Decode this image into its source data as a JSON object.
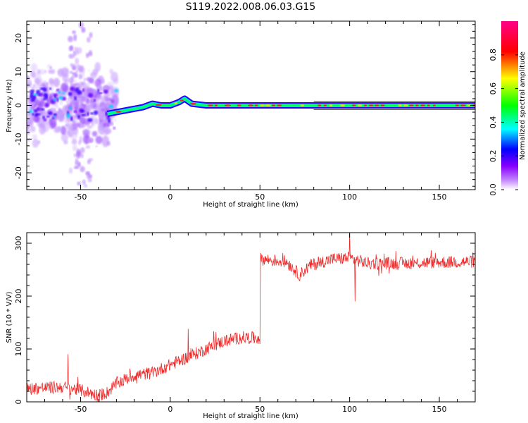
{
  "figure_title": "S119.2022.008.06.03.G15",
  "colors": {
    "snr_line": "#ef2b2b",
    "spectrum_background": "#ffffff",
    "axis": "#000000"
  },
  "chart_data": [
    {
      "type": "heatmap",
      "name": "spectrogram",
      "xlabel": "Height of straight line (km)",
      "ylabel": "Frequency (Hz)",
      "xlim": [
        -80,
        170
      ],
      "ylim": [
        -25,
        25
      ],
      "x_ticks": [
        -50,
        0,
        50,
        100,
        150
      ],
      "y_ticks": [
        -20,
        -10,
        0,
        10,
        20
      ],
      "grid": false,
      "colorbar": {
        "label": "Normalized spectral amplitude",
        "range": [
          0.0,
          1.0
        ],
        "ticks": [
          0.0,
          0.2,
          0.4,
          0.6,
          0.8
        ],
        "colormap": [
          "#ffffff",
          "#8800ff",
          "#0000ff",
          "#00ffff",
          "#00ff00",
          "#ffff00",
          "#ff0000",
          "#ff0088"
        ]
      },
      "ridge_frequency_hz": [
        {
          "x": -35,
          "f": -2.5
        },
        {
          "x": -30,
          "f": -2.0
        },
        {
          "x": -25,
          "f": -1.5
        },
        {
          "x": -20,
          "f": -1.0
        },
        {
          "x": -15,
          "f": -0.5
        },
        {
          "x": -10,
          "f": 0.5
        },
        {
          "x": -5,
          "f": 0.0
        },
        {
          "x": 0,
          "f": 0.0
        },
        {
          "x": 5,
          "f": 1.0
        },
        {
          "x": 8,
          "f": 2.0
        },
        {
          "x": 12,
          "f": 0.5
        },
        {
          "x": 20,
          "f": 0.0
        },
        {
          "x": 170,
          "f": 0.0
        }
      ],
      "noise_cloud_x_range": [
        -80,
        -30
      ],
      "noise_cloud_f_range": [
        -15,
        15
      ]
    },
    {
      "type": "line",
      "name": "snr",
      "xlabel": "Height of straight line (km)",
      "ylabel": "SNR (10 * V/V)",
      "xlim": [
        -80,
        170
      ],
      "ylim": [
        0,
        320
      ],
      "x_ticks": [
        -50,
        0,
        50,
        100,
        150
      ],
      "y_ticks": [
        0,
        100,
        200,
        300
      ],
      "grid": false,
      "series": [
        {
          "values_trend": [
            {
              "x": -80,
              "y": 25
            },
            {
              "x": -60,
              "y": 28
            },
            {
              "x": -50,
              "y": 22
            },
            {
              "x": -40,
              "y": 12
            },
            {
              "x": -35,
              "y": 18
            },
            {
              "x": -30,
              "y": 35
            },
            {
              "x": -20,
              "y": 50
            },
            {
              "x": -10,
              "y": 55
            },
            {
              "x": 0,
              "y": 70
            },
            {
              "x": 10,
              "y": 85
            },
            {
              "x": 20,
              "y": 100
            },
            {
              "x": 30,
              "y": 115
            },
            {
              "x": 40,
              "y": 122
            },
            {
              "x": 50,
              "y": 120
            },
            {
              "x": 50.2,
              "y": 270
            },
            {
              "x": 65,
              "y": 265
            },
            {
              "x": 72,
              "y": 240
            },
            {
              "x": 78,
              "y": 258
            },
            {
              "x": 90,
              "y": 270
            },
            {
              "x": 100,
              "y": 272
            },
            {
              "x": 110,
              "y": 262
            },
            {
              "x": 130,
              "y": 262
            },
            {
              "x": 150,
              "y": 264
            },
            {
              "x": 170,
              "y": 265
            }
          ],
          "noise_amplitude": 12,
          "spikes": [
            {
              "x": -57,
              "y": 90
            },
            {
              "x": 10,
              "y": 138
            },
            {
              "x": 100,
              "y": 318
            },
            {
              "x": 103,
              "y": 190
            }
          ]
        }
      ]
    }
  ]
}
